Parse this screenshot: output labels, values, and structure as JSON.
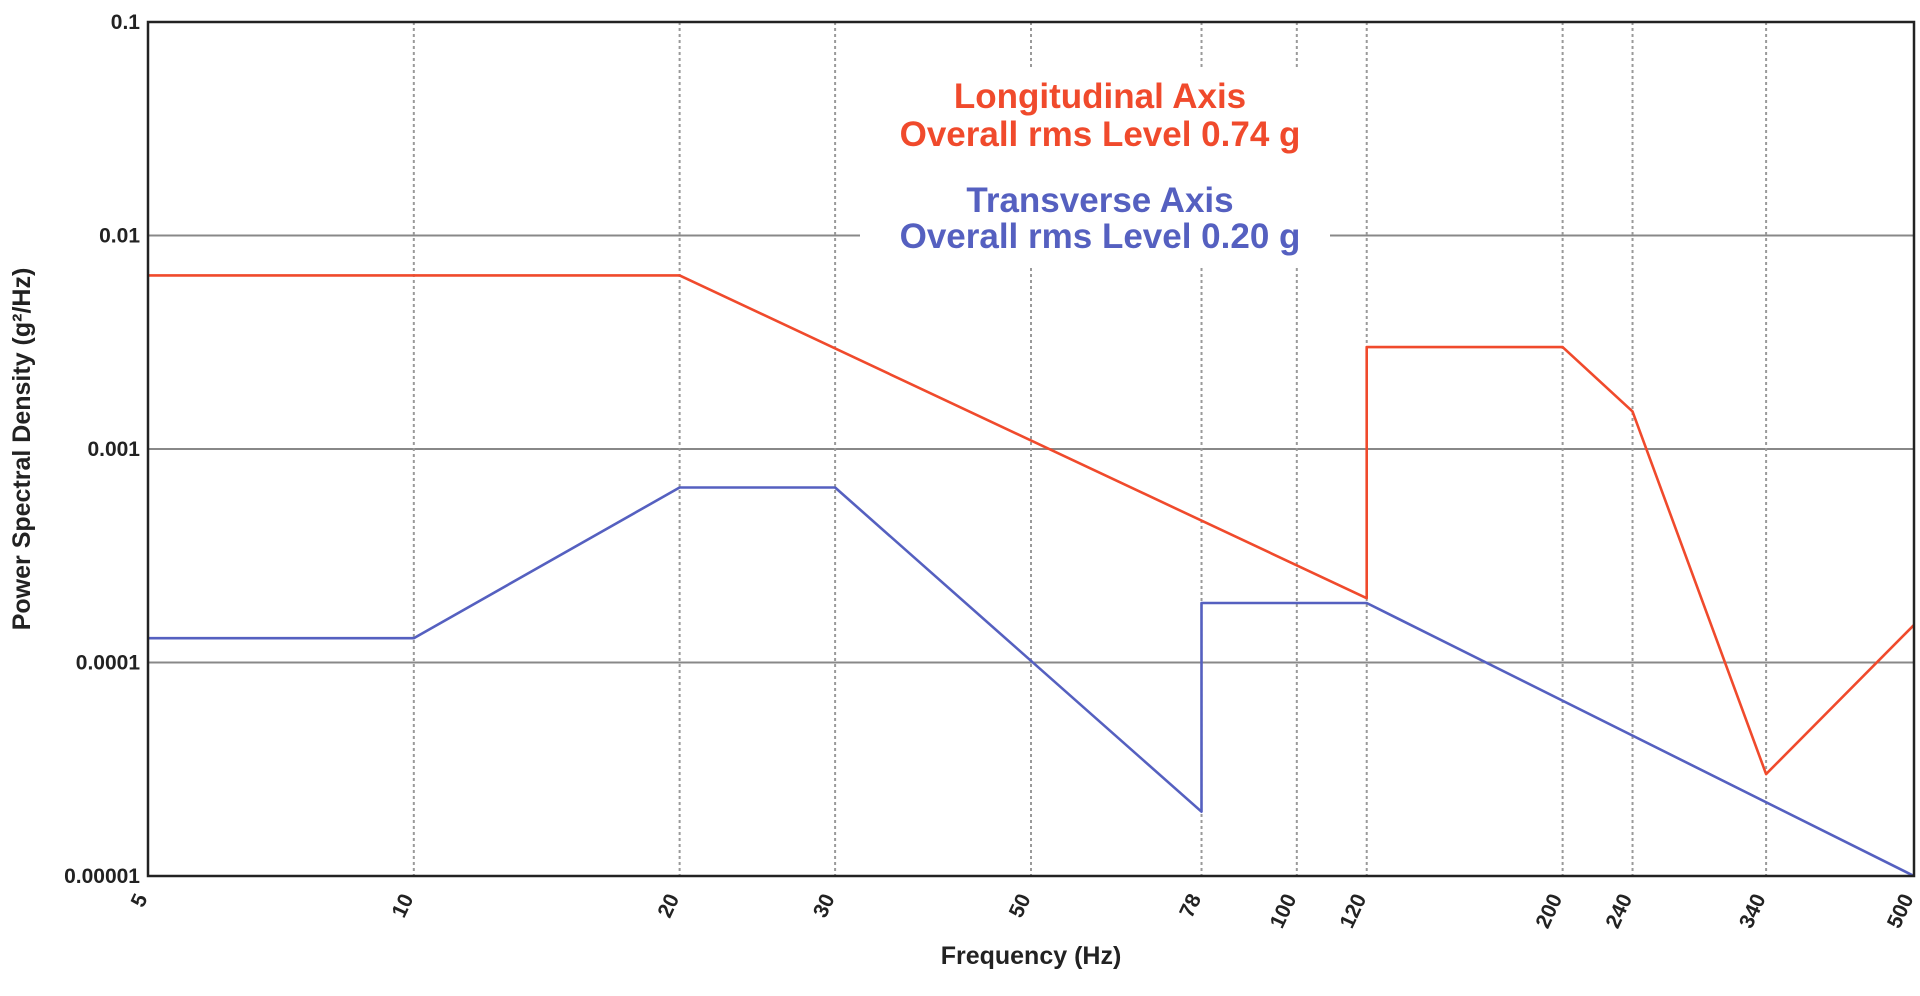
{
  "chart_data": {
    "type": "line",
    "title": "",
    "xlabel": "Frequency (Hz)",
    "ylabel": "Power Spectral Density (g²/Hz)",
    "xscale": "log",
    "yscale": "log",
    "xlim": [
      5,
      500
    ],
    "ylim": [
      1e-05,
      0.1
    ],
    "x_ticks": [
      5,
      10,
      20,
      30,
      50,
      78,
      100,
      120,
      200,
      240,
      340,
      500
    ],
    "x_tick_labels": [
      "5",
      "10",
      "20",
      "30",
      "50",
      "78",
      "100",
      "120",
      "200",
      "240",
      "340",
      "500"
    ],
    "y_ticks": [
      0.1,
      0.01,
      0.001,
      0.0001,
      1e-05
    ],
    "y_tick_labels": [
      "0.1",
      "0.01",
      "0.001",
      "0.0001",
      "0.00001"
    ],
    "grid": true,
    "series": [
      {
        "name": "Longitudinal Axis",
        "color": "#f04a2c",
        "x": [
          5,
          20,
          120,
          120,
          200,
          240,
          340,
          500
        ],
        "y": [
          0.0065,
          0.0065,
          0.0002,
          0.003,
          0.003,
          0.0015,
          3e-05,
          0.00015
        ]
      },
      {
        "name": "Transverse Axis",
        "color": "#5560c0",
        "x": [
          5,
          10,
          20,
          30,
          78,
          78,
          120,
          500
        ],
        "y": [
          0.00013,
          0.00013,
          0.00066,
          0.00066,
          2e-05,
          0.00019,
          0.00019,
          1e-05
        ]
      }
    ],
    "annotations": [
      {
        "series": "Longitudinal Axis",
        "line1": "Longitudinal Axis",
        "line2": "Overall rms Level 0.74 g",
        "color": "#f04a2c"
      },
      {
        "series": "Transverse Axis",
        "line1": "Transverse Axis",
        "line2": "Overall rms Level 0.20 g",
        "color": "#5560c0"
      }
    ]
  }
}
